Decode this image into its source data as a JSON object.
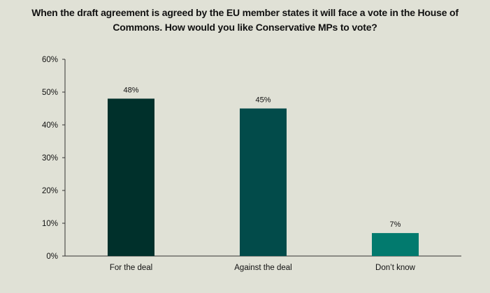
{
  "chart_data": {
    "type": "bar",
    "title": "When the draft agreement is agreed by the EU member states it will face a vote in the House of Commons. How would you like Conservative MPs to vote?",
    "categories": [
      "For the deal",
      "Against the deal",
      "Don’t know"
    ],
    "values": [
      48,
      45,
      7
    ],
    "value_labels": [
      "48%",
      "45%",
      "7%"
    ],
    "colors": [
      "#00302b",
      "#024b4a",
      "#027a6e"
    ],
    "ylim": [
      0,
      60
    ],
    "yticks": [
      0,
      10,
      20,
      30,
      40,
      50,
      60
    ],
    "ytick_labels": [
      "0%",
      "10%",
      "20%",
      "30%",
      "40%",
      "50%",
      "60%"
    ],
    "xlabel": "",
    "ylabel": "",
    "grid": false,
    "legend": "none"
  }
}
